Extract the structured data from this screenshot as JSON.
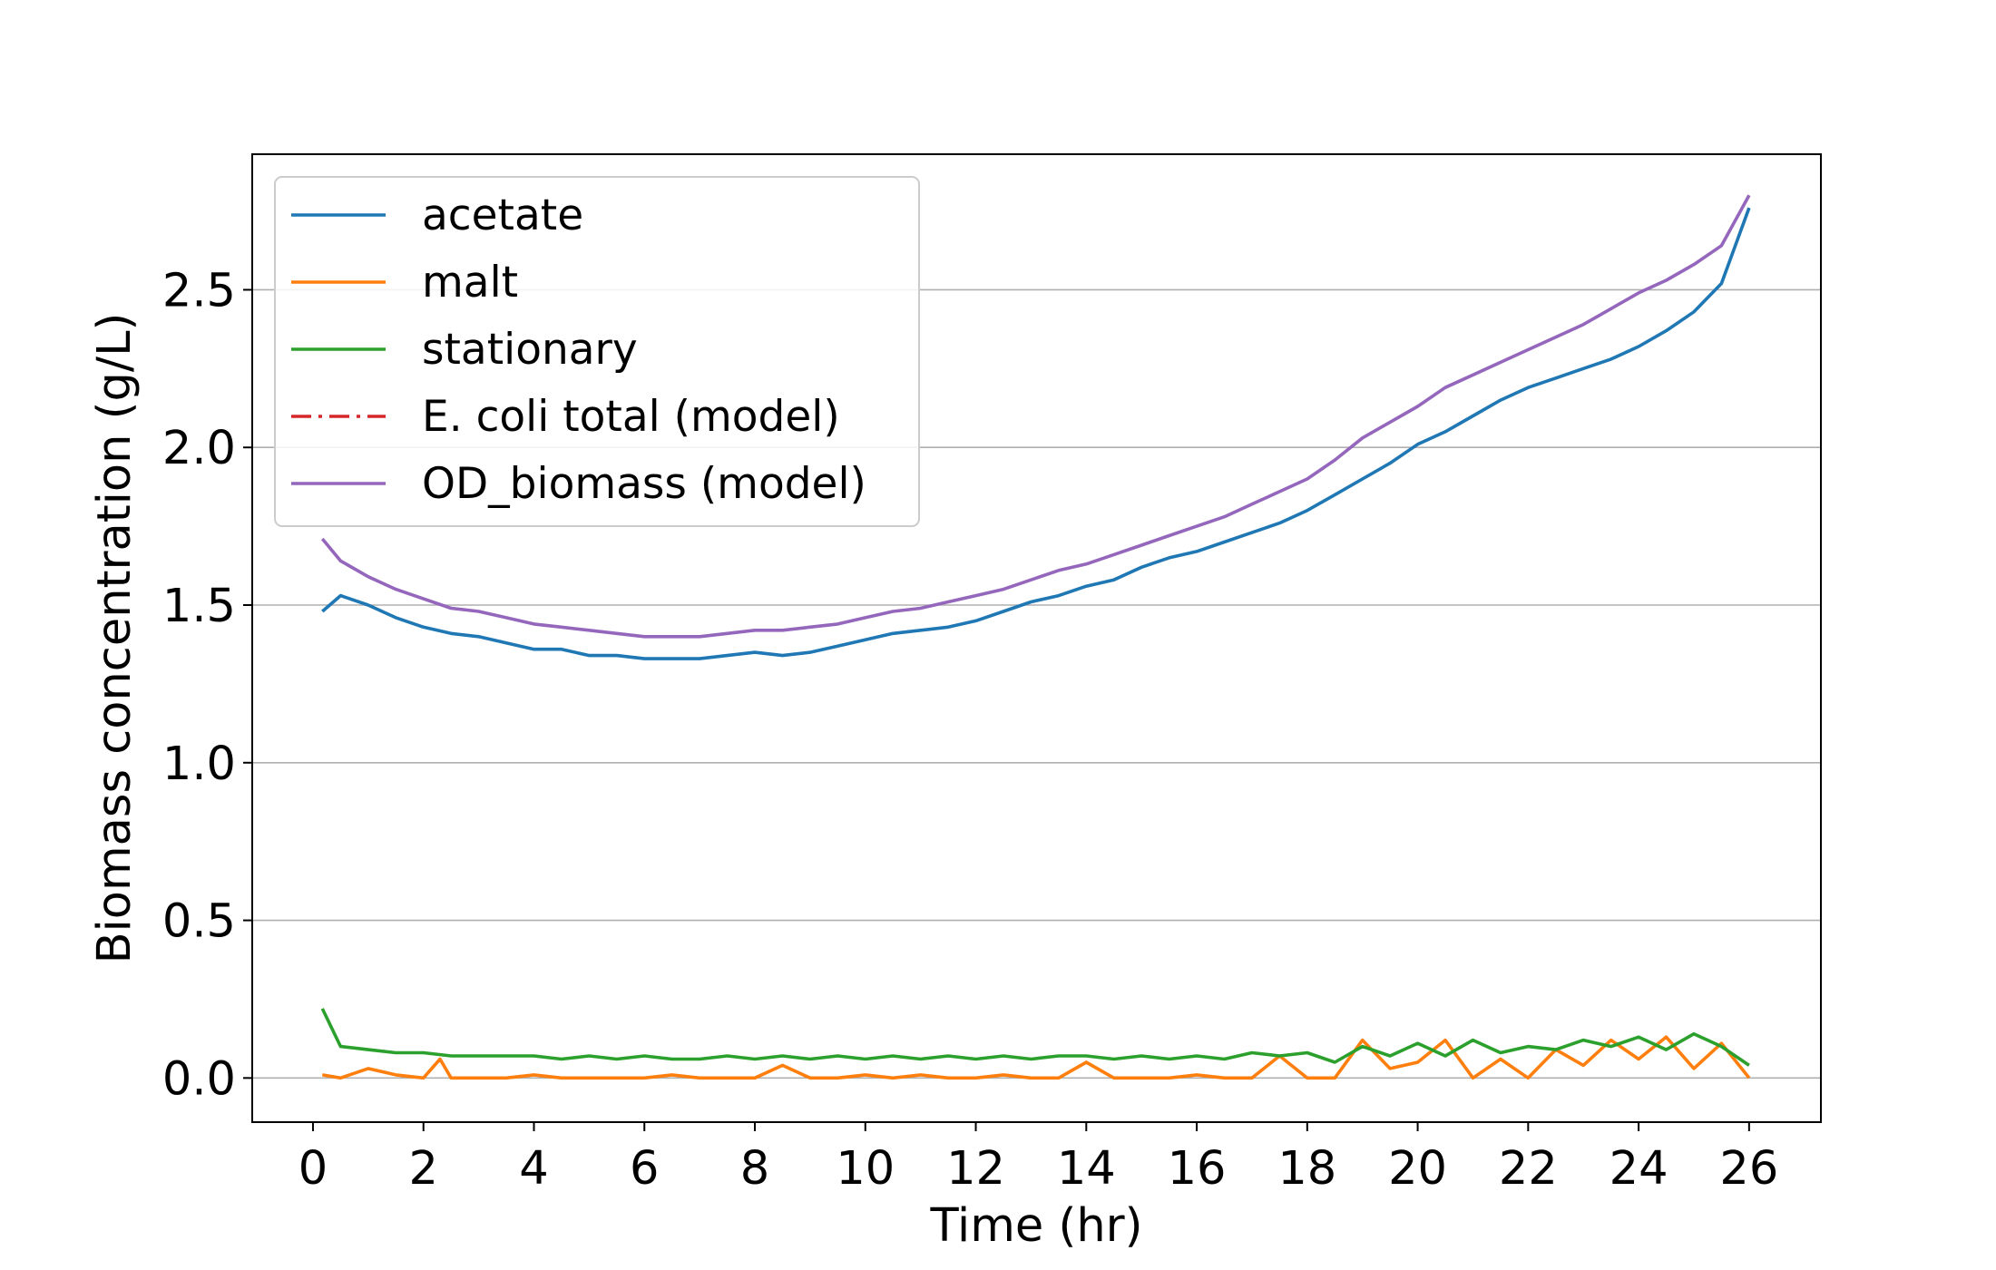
{
  "chart_data": {
    "type": "line",
    "xlabel": "Time (hr)",
    "ylabel": "Biomass concentration (g/L)",
    "xlim": [
      -1.1,
      27.3
    ],
    "ylim": [
      -0.14,
      2.93
    ],
    "xticks": [
      0,
      2,
      4,
      6,
      8,
      10,
      12,
      14,
      16,
      18,
      20,
      22,
      24,
      26
    ],
    "xtick_labels": [
      "0",
      "2",
      "4",
      "6",
      "8",
      "10",
      "12",
      "14",
      "16",
      "18",
      "20",
      "22",
      "24",
      "26"
    ],
    "yticks": [
      0.0,
      0.5,
      1.0,
      1.5,
      2.0,
      2.5
    ],
    "ytick_labels": [
      "0.0",
      "0.5",
      "1.0",
      "1.5",
      "2.0",
      "2.5"
    ],
    "grid": "horizontal",
    "legend_position": "top-left",
    "series": [
      {
        "name": "acetate",
        "color": "#1f77b4",
        "style": "solid",
        "x": [
          0.17,
          0.5,
          1.0,
          1.5,
          2.0,
          2.5,
          3.0,
          3.5,
          4.0,
          4.5,
          5.0,
          5.5,
          6.0,
          6.5,
          7.0,
          7.5,
          8.0,
          8.5,
          9.0,
          9.5,
          10.0,
          10.5,
          11.0,
          11.5,
          12.0,
          12.5,
          13.0,
          13.5,
          14.0,
          14.5,
          15.0,
          15.5,
          16.0,
          16.5,
          17.0,
          17.5,
          18.0,
          18.5,
          19.0,
          19.5,
          20.0,
          20.5,
          21.0,
          21.5,
          22.0,
          22.5,
          23.0,
          23.5,
          24.0,
          24.5,
          25.0,
          25.5,
          26.0
        ],
        "y": [
          1.48,
          1.53,
          1.5,
          1.46,
          1.43,
          1.41,
          1.4,
          1.38,
          1.36,
          1.36,
          1.34,
          1.34,
          1.33,
          1.33,
          1.33,
          1.34,
          1.35,
          1.34,
          1.35,
          1.37,
          1.39,
          1.41,
          1.42,
          1.43,
          1.45,
          1.48,
          1.51,
          1.53,
          1.56,
          1.58,
          1.62,
          1.65,
          1.67,
          1.7,
          1.73,
          1.76,
          1.8,
          1.85,
          1.9,
          1.95,
          2.01,
          2.05,
          2.1,
          2.15,
          2.19,
          2.22,
          2.25,
          2.28,
          2.32,
          2.37,
          2.43,
          2.52,
          2.76
        ]
      },
      {
        "name": "malt",
        "color": "#ff7f0e",
        "style": "solid",
        "x": [
          0.17,
          0.5,
          1.0,
          1.5,
          2.0,
          2.3,
          2.5,
          3.0,
          3.5,
          4.0,
          4.5,
          5.0,
          5.5,
          6.0,
          6.5,
          7.0,
          7.5,
          8.0,
          8.5,
          9.0,
          9.5,
          10.0,
          10.5,
          11.0,
          11.5,
          12.0,
          12.5,
          13.0,
          13.5,
          14.0,
          14.5,
          15.0,
          15.5,
          16.0,
          16.5,
          17.0,
          17.5,
          18.0,
          18.5,
          19.0,
          19.5,
          20.0,
          20.5,
          21.0,
          21.5,
          22.0,
          22.5,
          23.0,
          23.5,
          24.0,
          24.5,
          25.0,
          25.5,
          26.0
        ],
        "y": [
          0.01,
          0.0,
          0.03,
          0.01,
          0.0,
          0.06,
          0.0,
          0.0,
          0.0,
          0.01,
          0.0,
          0.0,
          0.0,
          0.0,
          0.01,
          0.0,
          0.0,
          0.0,
          0.04,
          0.0,
          0.0,
          0.01,
          0.0,
          0.01,
          0.0,
          0.0,
          0.01,
          0.0,
          0.0,
          0.05,
          0.0,
          0.0,
          0.0,
          0.01,
          0.0,
          0.0,
          0.07,
          0.0,
          0.0,
          0.12,
          0.03,
          0.05,
          0.12,
          0.0,
          0.06,
          0.0,
          0.09,
          0.04,
          0.12,
          0.06,
          0.13,
          0.03,
          0.11,
          0.0
        ]
      },
      {
        "name": "stationary",
        "color": "#2ca02c",
        "style": "solid",
        "x": [
          0.17,
          0.5,
          1.0,
          1.5,
          2.0,
          2.5,
          3.0,
          3.5,
          4.0,
          4.5,
          5.0,
          5.5,
          6.0,
          6.5,
          7.0,
          7.5,
          8.0,
          8.5,
          9.0,
          9.5,
          10.0,
          10.5,
          11.0,
          11.5,
          12.0,
          12.5,
          13.0,
          13.5,
          14.0,
          14.5,
          15.0,
          15.5,
          16.0,
          16.5,
          17.0,
          17.5,
          18.0,
          18.5,
          19.0,
          19.5,
          20.0,
          20.5,
          21.0,
          21.5,
          22.0,
          22.5,
          23.0,
          23.5,
          24.0,
          24.5,
          25.0,
          25.5,
          26.0
        ],
        "y": [
          0.22,
          0.1,
          0.09,
          0.08,
          0.08,
          0.07,
          0.07,
          0.07,
          0.07,
          0.06,
          0.07,
          0.06,
          0.07,
          0.06,
          0.06,
          0.07,
          0.06,
          0.07,
          0.06,
          0.07,
          0.06,
          0.07,
          0.06,
          0.07,
          0.06,
          0.07,
          0.06,
          0.07,
          0.07,
          0.06,
          0.07,
          0.06,
          0.07,
          0.06,
          0.08,
          0.07,
          0.08,
          0.05,
          0.1,
          0.07,
          0.11,
          0.07,
          0.12,
          0.08,
          0.1,
          0.09,
          0.12,
          0.1,
          0.13,
          0.09,
          0.14,
          0.1,
          0.04
        ]
      },
      {
        "name": "E. coli total (model)",
        "color": "#d62728",
        "style": "dashdot",
        "x": [],
        "y": []
      },
      {
        "name": "OD_biomass (model)",
        "color": "#9467bd",
        "style": "solid",
        "x": [
          0.17,
          0.5,
          1.0,
          1.5,
          2.0,
          2.5,
          3.0,
          3.5,
          4.0,
          4.5,
          5.0,
          5.5,
          6.0,
          6.5,
          7.0,
          7.5,
          8.0,
          8.5,
          9.0,
          9.5,
          10.0,
          10.5,
          11.0,
          11.5,
          12.0,
          12.5,
          13.0,
          13.5,
          14.0,
          14.5,
          15.0,
          15.5,
          16.0,
          16.5,
          17.0,
          17.5,
          18.0,
          18.5,
          19.0,
          19.5,
          20.0,
          20.5,
          21.0,
          21.5,
          22.0,
          22.5,
          23.0,
          23.5,
          24.0,
          24.5,
          25.0,
          25.5,
          26.0
        ],
        "y": [
          1.71,
          1.64,
          1.59,
          1.55,
          1.52,
          1.49,
          1.48,
          1.46,
          1.44,
          1.43,
          1.42,
          1.41,
          1.4,
          1.4,
          1.4,
          1.41,
          1.42,
          1.42,
          1.43,
          1.44,
          1.46,
          1.48,
          1.49,
          1.51,
          1.53,
          1.55,
          1.58,
          1.61,
          1.63,
          1.66,
          1.69,
          1.72,
          1.75,
          1.78,
          1.82,
          1.86,
          1.9,
          1.96,
          2.03,
          2.08,
          2.13,
          2.19,
          2.23,
          2.27,
          2.31,
          2.35,
          2.39,
          2.44,
          2.49,
          2.53,
          2.58,
          2.64,
          2.8
        ]
      }
    ]
  }
}
